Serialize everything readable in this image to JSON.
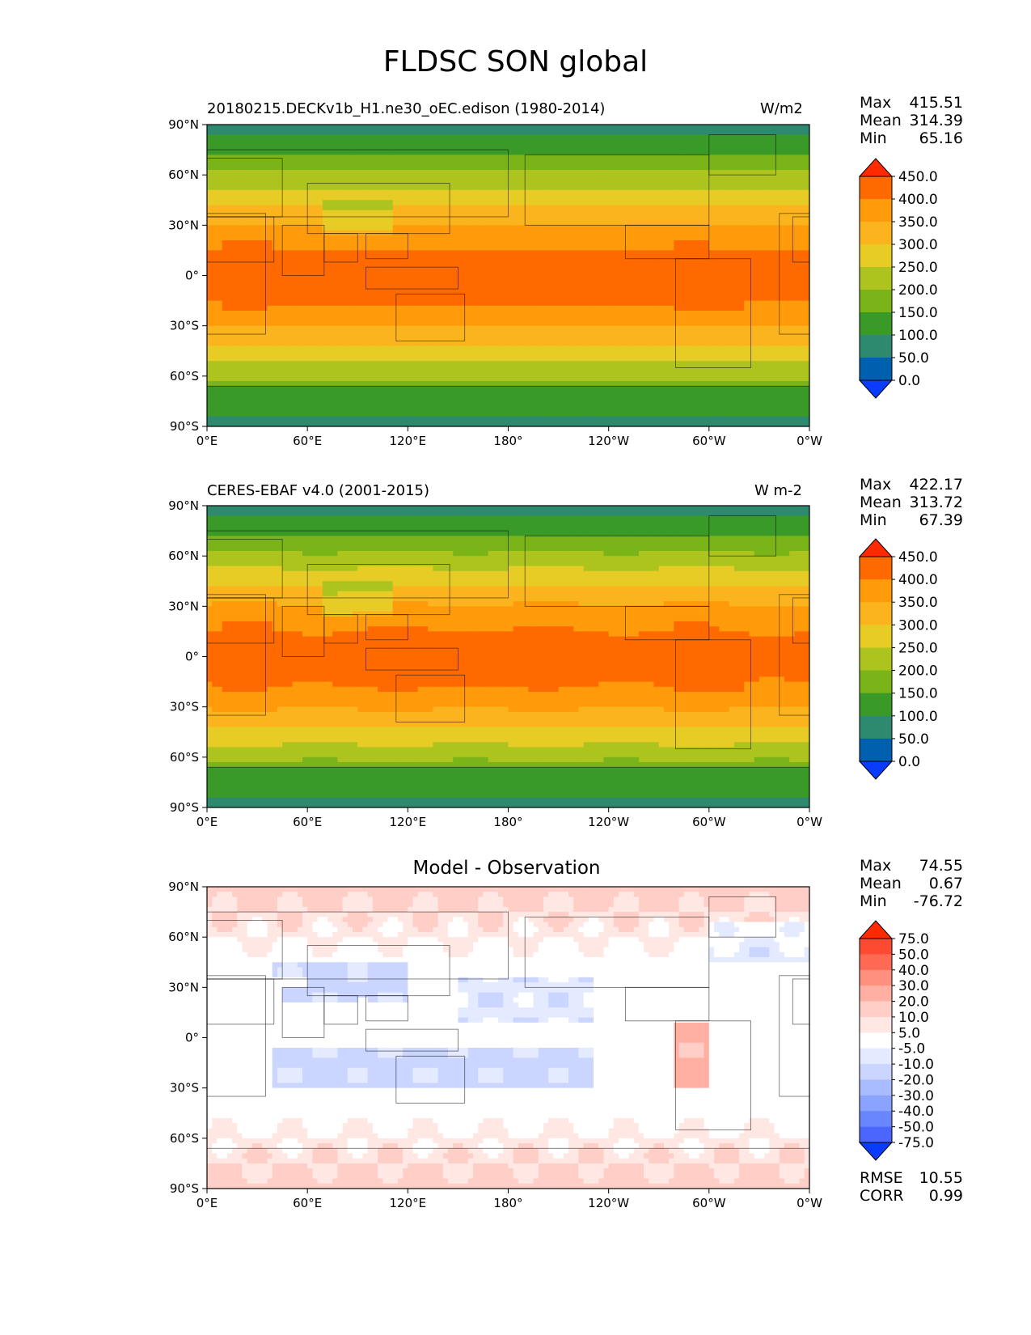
{
  "figure": {
    "title": "FLDSC SON global"
  },
  "panels": [
    {
      "label_left": "20180215.DECKv1b_H1.ne30_oEC.edison (1980-2014)",
      "label_right": "W/m2",
      "label_center": "",
      "stats": {
        "max_label": "Max",
        "max": "415.51",
        "mean_label": "Mean",
        "mean": "314.39",
        "min_label": "Min",
        "min": "65.16"
      },
      "colorbar": {
        "levels": [
          "450.0",
          "400.0",
          "350.0",
          "300.0",
          "250.0",
          "200.0",
          "150.0",
          "100.0",
          "50.0",
          "0.0"
        ],
        "colors": [
          "#ff2a00",
          "#ff6a00",
          "#ff9a0a",
          "#fbb41e",
          "#e8cc26",
          "#aec41e",
          "#7ab418",
          "#3a9a28",
          "#2e8a6e",
          "#0060b0",
          "#0a3cff"
        ]
      },
      "field": "model"
    },
    {
      "label_left": "CERES-EBAF v4.0 (2001-2015)",
      "label_right": "W m-2",
      "label_center": "",
      "stats": {
        "max_label": "Max",
        "max": "422.17",
        "mean_label": "Mean",
        "mean": "313.72",
        "min_label": "Min",
        "min": "67.39"
      },
      "colorbar": {
        "levels": [
          "450.0",
          "400.0",
          "350.0",
          "300.0",
          "250.0",
          "200.0",
          "150.0",
          "100.0",
          "50.0",
          "0.0"
        ],
        "colors": [
          "#ff2a00",
          "#ff6a00",
          "#ff9a0a",
          "#fbb41e",
          "#e8cc26",
          "#aec41e",
          "#7ab418",
          "#3a9a28",
          "#2e8a6e",
          "#0060b0",
          "#0a3cff"
        ]
      },
      "field": "obs"
    },
    {
      "label_left": "",
      "label_right": "",
      "label_center": "Model - Observation",
      "stats": {
        "max_label": "Max",
        "max": "74.55",
        "mean_label": "Mean",
        "mean": "0.67",
        "min_label": "Min",
        "min": "-76.72"
      },
      "extra_stats": {
        "rmse_label": "RMSE",
        "rmse": "10.55",
        "corr_label": "CORR",
        "corr": "0.99"
      },
      "colorbar": {
        "levels": [
          "75.0",
          "50.0",
          "40.0",
          "30.0",
          "20.0",
          "10.0",
          "5.0",
          "-5.0",
          "-10.0",
          "-20.0",
          "-30.0",
          "-40.0",
          "-50.0",
          "-75.0"
        ],
        "colors": [
          "#ff2a00",
          "#ff4a32",
          "#ff6a55",
          "#ff8f7e",
          "#ffb0a2",
          "#ffcec6",
          "#ffe8e4",
          "#ffffff",
          "#e4eaff",
          "#cad6ff",
          "#a8bcff",
          "#8aa3ff",
          "#6a86ff",
          "#4a66ff",
          "#0a3cff"
        ]
      },
      "field": "diff"
    }
  ],
  "axes": {
    "lat_ticks": [
      "90°N",
      "60°N",
      "30°N",
      "0°",
      "30°S",
      "60°S",
      "90°S"
    ],
    "lon_ticks": [
      "0°E",
      "60°E",
      "120°E",
      "180°",
      "120°W",
      "60°W",
      "0°W"
    ]
  },
  "chart_data": [
    {
      "type": "heatmap",
      "title": "20180215.DECKv1b_H1.ne30_oEC.edison (1980-2014)",
      "units": "W/m2",
      "xlim": [
        0,
        360
      ],
      "ylim": [
        -90,
        90
      ],
      "max": 415.51,
      "mean": 314.39,
      "min": 65.16,
      "contour_levels": [
        0,
        50,
        100,
        150,
        200,
        250,
        300,
        350,
        400,
        450
      ]
    },
    {
      "type": "heatmap",
      "title": "CERES-EBAF v4.0 (2001-2015)",
      "units": "W m-2",
      "xlim": [
        0,
        360
      ],
      "ylim": [
        -90,
        90
      ],
      "max": 422.17,
      "mean": 313.72,
      "min": 67.39,
      "contour_levels": [
        0,
        50,
        100,
        150,
        200,
        250,
        300,
        350,
        400,
        450
      ]
    },
    {
      "type": "heatmap",
      "title": "Model - Observation",
      "xlim": [
        0,
        360
      ],
      "ylim": [
        -90,
        90
      ],
      "max": 74.55,
      "mean": 0.67,
      "min": -76.72,
      "rmse": 10.55,
      "corr": 0.99,
      "contour_levels": [
        -75,
        -50,
        -40,
        -30,
        -20,
        -10,
        -5,
        5,
        10,
        20,
        30,
        40,
        50,
        75
      ]
    }
  ]
}
